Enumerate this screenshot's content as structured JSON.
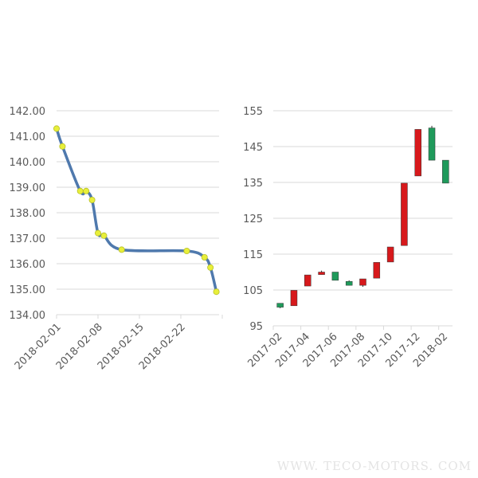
{
  "chart_data": [
    {
      "type": "line",
      "smooth": true,
      "title": "",
      "xlabel": "",
      "ylabel": "",
      "ylim": [
        134,
        142
      ],
      "yticks": [
        "134.00",
        "135.00",
        "136.00",
        "137.00",
        "138.00",
        "139.00",
        "140.00",
        "141.00",
        "142.00"
      ],
      "xticks": [
        "2018-02-01",
        "2018-02-08",
        "2018-02-15",
        "2018-02-22"
      ],
      "xlim": [
        "2018-02-01",
        "2018-03-01"
      ],
      "grid": true,
      "line_color": "#4f79ad",
      "marker_color": "#e8ef3a",
      "x": [
        "2018-02-01",
        "2018-02-02",
        "2018-02-05",
        "2018-02-06",
        "2018-02-07",
        "2018-02-08",
        "2018-02-09",
        "2018-02-12",
        "2018-02-23",
        "2018-02-26",
        "2018-02-27",
        "2018-02-28"
      ],
      "y": [
        141.3,
        140.6,
        138.85,
        138.85,
        138.5,
        137.2,
        137.1,
        136.55,
        136.5,
        136.25,
        135.85,
        134.9
      ]
    },
    {
      "type": "candlestick",
      "title": "",
      "xlabel": "",
      "ylabel": "",
      "ylim": [
        95,
        155
      ],
      "yticks": [
        "95",
        "105",
        "115",
        "125",
        "135",
        "145",
        "155"
      ],
      "xticks": [
        "2017-02",
        "2017-04",
        "2017-06",
        "2017-08",
        "2017-10",
        "2017-12",
        "2018-02"
      ],
      "grid": true,
      "up_color": "#d7191c",
      "down_color": "#1f9a5b",
      "categories": [
        "2017-02",
        "2017-03",
        "2017-04",
        "2017-05",
        "2017-06",
        "2017-07",
        "2017-08",
        "2017-09",
        "2017-10",
        "2017-11",
        "2017-12",
        "2018-01",
        "2018-02"
      ],
      "open": [
        101.3,
        100.6,
        106.1,
        109.3,
        110.0,
        107.4,
        106.3,
        108.3,
        112.8,
        117.4,
        136.8,
        150.2,
        141.2
      ],
      "close": [
        100.2,
        104.9,
        109.2,
        110.0,
        107.7,
        106.3,
        108.1,
        112.7,
        117.0,
        134.8,
        149.8,
        141.2,
        134.8
      ],
      "high": [
        101.3,
        104.9,
        109.2,
        110.4,
        110.0,
        107.7,
        108.1,
        112.7,
        117.0,
        134.8,
        149.8,
        150.8,
        141.2
      ],
      "low": [
        99.9,
        100.6,
        106.1,
        109.3,
        107.7,
        106.3,
        105.9,
        108.3,
        112.8,
        117.4,
        136.8,
        141.2,
        134.8
      ]
    }
  ],
  "watermark": "WWW. TECO-MOTORS. COM"
}
